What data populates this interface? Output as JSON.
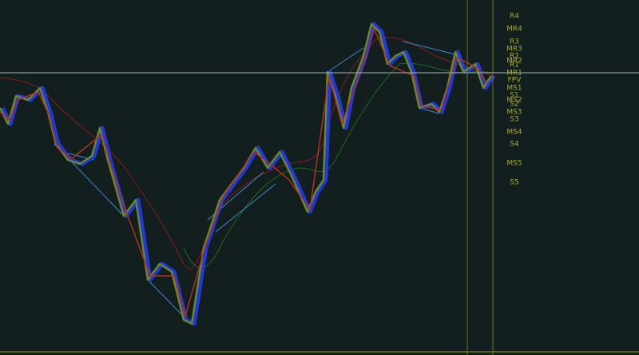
{
  "pivot_levels": [
    "R4",
    "MR4",
    "R3",
    "MR3",
    "R2",
    "MR2",
    "R1",
    "MR1",
    "FPV",
    "MS1",
    "S1",
    "MS2",
    "S2",
    "MS3",
    "S3",
    "MS4",
    "S4",
    "MS5",
    "S5"
  ]
}
